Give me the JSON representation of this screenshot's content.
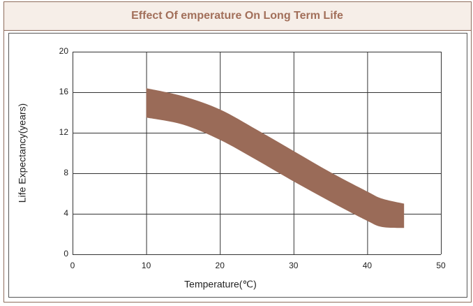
{
  "chart_data": {
    "type": "band",
    "title": "Effect Of emperature On Long Term Life",
    "xlabel": "Temperature(℃)",
    "ylabel": "Life Expectancy(years)",
    "x": [
      10,
      15,
      20,
      25,
      30,
      35,
      40,
      42,
      45
    ],
    "series": [
      {
        "values": [
          16.4,
          15.6,
          14.3,
          12.3,
          10.2,
          8.1,
          6.2,
          5.5,
          5.0
        ]
      },
      {
        "values": [
          13.5,
          12.8,
          11.3,
          9.3,
          7.2,
          5.2,
          3.3,
          2.7,
          2.6
        ]
      }
    ],
    "color": "#9a6b58",
    "xlim": [
      0,
      50
    ],
    "xticks": [
      0,
      10,
      20,
      30,
      40,
      50
    ],
    "ylim": [
      0,
      20
    ],
    "yticks": [
      0,
      4,
      8,
      12,
      16,
      20
    ],
    "grid": true
  }
}
